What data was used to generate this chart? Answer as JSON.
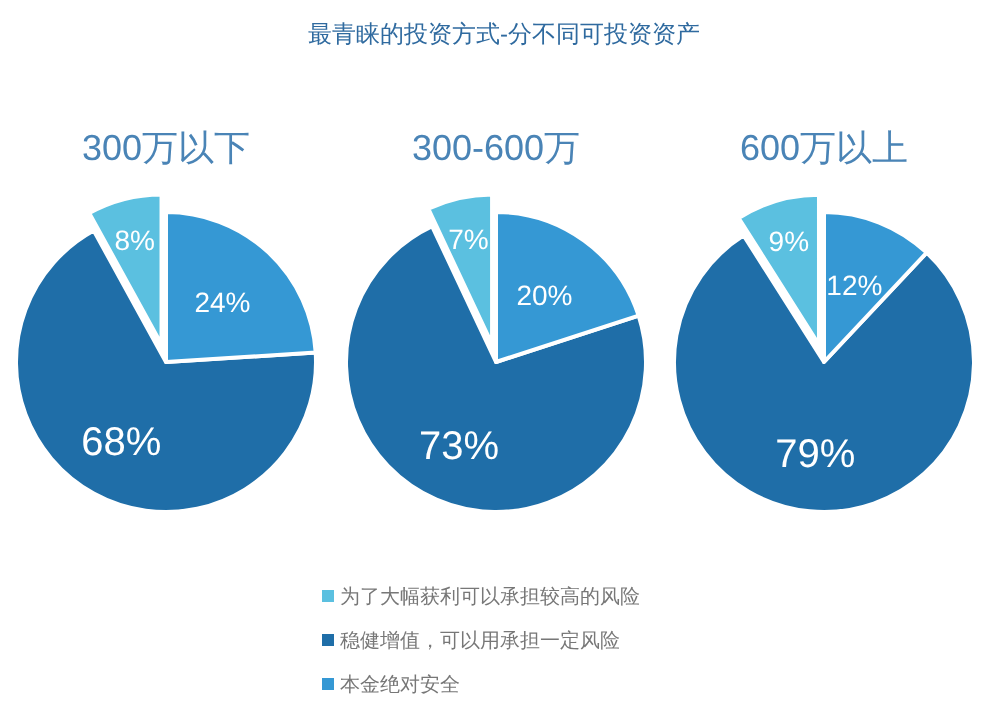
{
  "chart_data": [
    {
      "type": "pie",
      "title": "300万以下",
      "annotations": [
        "最青睐的投资方式-分不同可投资资产"
      ],
      "categories": [
        "为了大幅获利可以承担较高的风险",
        "稳健增值，可以用承担一定风险",
        "本金绝对安全"
      ],
      "values": [
        8,
        68,
        24
      ],
      "value_labels": [
        "8%",
        "68%",
        "24%"
      ],
      "colors": [
        "#5bc0e0",
        "#1f6ea8",
        "#3598d4"
      ],
      "legend": "bottom"
    },
    {
      "type": "pie",
      "title": "300-600万",
      "categories": [
        null,
        null,
        null
      ],
      "values": [
        7,
        73,
        20
      ],
      "value_labels": [
        "7%",
        "73%",
        "20%"
      ],
      "colors": [
        "#5bc0e0",
        "#1f6ea8",
        "#3598d4"
      ]
    },
    {
      "type": "pie",
      "title": "600万以上",
      "categories": [
        null,
        null,
        null
      ],
      "values": [
        9,
        79,
        12
      ],
      "value_labels": [
        "9%",
        "79%",
        "12%"
      ],
      "colors": [
        "#5bc0e0",
        "#1f6ea8",
        "#3598d4"
      ]
    }
  ]
}
